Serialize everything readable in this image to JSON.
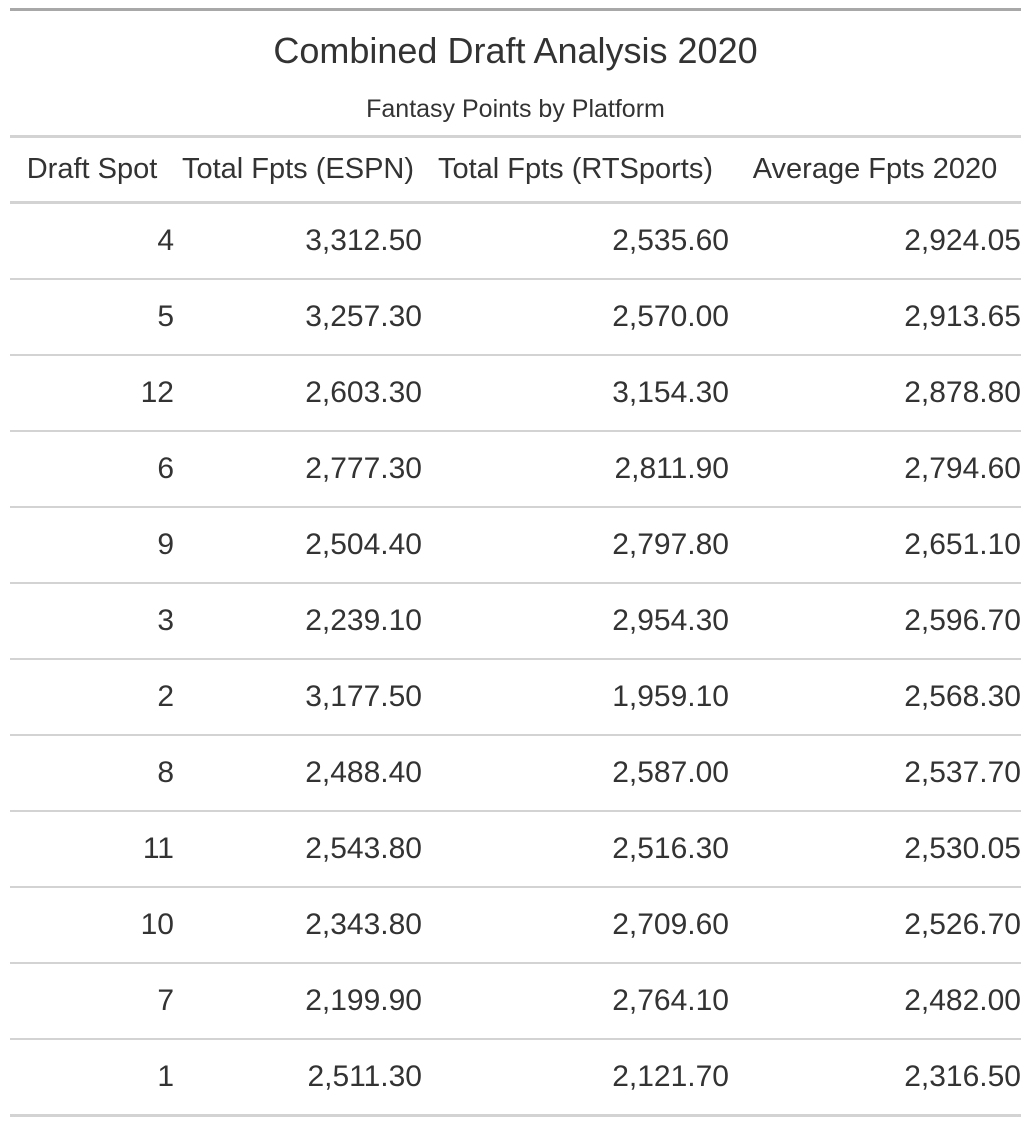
{
  "chart_data": {
    "type": "table",
    "title": "Combined Draft Analysis 2020",
    "subtitle": "Fantasy Points by Platform",
    "columns": [
      "Draft Spot",
      "Total Fpts (ESPN)",
      "Total Fpts (RTSports)",
      "Average Fpts 2020"
    ],
    "rows": [
      [
        "4",
        "3,312.50",
        "2,535.60",
        "2,924.05"
      ],
      [
        "5",
        "3,257.30",
        "2,570.00",
        "2,913.65"
      ],
      [
        "12",
        "2,603.30",
        "3,154.30",
        "2,878.80"
      ],
      [
        "6",
        "2,777.30",
        "2,811.90",
        "2,794.60"
      ],
      [
        "9",
        "2,504.40",
        "2,797.80",
        "2,651.10"
      ],
      [
        "3",
        "2,239.10",
        "2,954.30",
        "2,596.70"
      ],
      [
        "2",
        "3,177.50",
        "1,959.10",
        "2,568.30"
      ],
      [
        "8",
        "2,488.40",
        "2,587.00",
        "2,537.70"
      ],
      [
        "11",
        "2,543.80",
        "2,516.30",
        "2,530.05"
      ],
      [
        "10",
        "2,343.80",
        "2,709.60",
        "2,526.70"
      ],
      [
        "7",
        "2,199.90",
        "2,764.10",
        "2,482.00"
      ],
      [
        "1",
        "2,511.30",
        "2,121.70",
        "2,316.50"
      ]
    ]
  },
  "colors": {
    "text": "#333333",
    "top_rule": "#a8a8a8",
    "row_rule": "#d3d3d3",
    "background": "#ffffff"
  }
}
